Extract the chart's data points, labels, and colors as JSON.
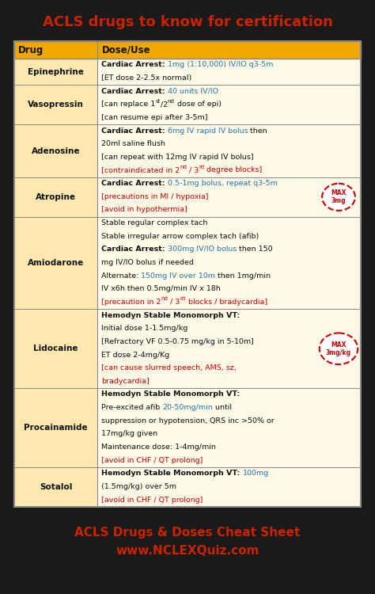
{
  "title": "ACLS drugs to know for certification",
  "footer_line1": "ACLS Drugs & Doses Cheat Sheet",
  "footer_line2": "www.NCLEXQuiz.com",
  "bg_color": "#1a1a1a",
  "title_color": "#cc2200",
  "footer_color": "#cc2200",
  "header_bg": "#f0a800",
  "header_text": "#111111",
  "drug_col_bg": "#fde8b0",
  "dose_col_bg": "#fef9e7",
  "border_color": "#888888",
  "black": "#111111",
  "red": "#cc0000",
  "blue": "#2277aa",
  "rows": [
    {
      "drug": "Epinephrine",
      "lines": [
        [
          {
            "text": "Cardiac Arrest: ",
            "bold": true,
            "color": "black"
          },
          {
            "text": "1mg (1:10,000) IV/IO q3-5m",
            "bold": false,
            "color": "blue"
          }
        ],
        [
          {
            "text": "[ET dose 2-2.5x normal)",
            "bold": false,
            "color": "black"
          }
        ]
      ],
      "max_badge": null
    },
    {
      "drug": "Vasopressin",
      "lines": [
        [
          {
            "text": "Cardiac Arrest: ",
            "bold": true,
            "color": "black"
          },
          {
            "text": "40 units IV/IO",
            "bold": false,
            "color": "blue"
          }
        ],
        [
          {
            "text": "[can replace 1",
            "bold": false,
            "color": "black"
          },
          {
            "text": "st",
            "bold": false,
            "color": "black",
            "super": true
          },
          {
            "text": "/2",
            "bold": false,
            "color": "black"
          },
          {
            "text": "nd",
            "bold": false,
            "color": "black",
            "super": true
          },
          {
            "text": " dose of epi)",
            "bold": false,
            "color": "black"
          }
        ],
        [
          {
            "text": "[can resume epi after 3-5m]",
            "bold": false,
            "color": "black"
          }
        ]
      ],
      "max_badge": null
    },
    {
      "drug": "Adenosine",
      "lines": [
        [
          {
            "text": "Cardiac Arrest: ",
            "bold": true,
            "color": "black"
          },
          {
            "text": "6mg IV rapid IV bolus",
            "bold": false,
            "color": "blue"
          },
          {
            "text": " then",
            "bold": false,
            "color": "black"
          }
        ],
        [
          {
            "text": "20ml saline flush",
            "bold": false,
            "color": "black"
          }
        ],
        [
          {
            "text": "[can repeat with 12mg IV rapid IV bolus]",
            "bold": false,
            "color": "black"
          }
        ],
        [
          {
            "text": "[contraindicated in 2",
            "bold": false,
            "color": "red"
          },
          {
            "text": "nd",
            "bold": false,
            "color": "red",
            "super": true
          },
          {
            "text": " / 3",
            "bold": false,
            "color": "red"
          },
          {
            "text": "rd",
            "bold": false,
            "color": "red",
            "super": true
          },
          {
            "text": " degree blocks]",
            "bold": false,
            "color": "red"
          }
        ]
      ],
      "max_badge": null
    },
    {
      "drug": "Atropine",
      "lines": [
        [
          {
            "text": "Cardiac Arrest: ",
            "bold": true,
            "color": "black"
          },
          {
            "text": "0.5-1mg bolus, repeat q3-5m",
            "bold": false,
            "color": "blue"
          }
        ],
        [
          {
            "text": "[precautions in MI / hypoxia]",
            "bold": false,
            "color": "red"
          }
        ],
        [
          {
            "text": "[avoid in hypothermia]",
            "bold": false,
            "color": "red"
          }
        ]
      ],
      "max_badge": {
        "text": "MAX\n3mg",
        "color": "#cc0000"
      }
    },
    {
      "drug": "Amiodarone",
      "lines": [
        [
          {
            "text": "Stable regular complex tach",
            "bold": false,
            "color": "black"
          }
        ],
        [
          {
            "text": "Stable irregular arrow complex tach (afib)",
            "bold": false,
            "color": "black"
          }
        ],
        [
          {
            "text": "Cardiac Arrest: ",
            "bold": true,
            "color": "black"
          },
          {
            "text": "300mg IV/IO bolus",
            "bold": false,
            "color": "blue"
          },
          {
            "text": " then 150",
            "bold": false,
            "color": "black"
          }
        ],
        [
          {
            "text": "mg IV/IO bolus if needed",
            "bold": false,
            "color": "black"
          }
        ],
        [
          {
            "text": "Alternate: ",
            "bold": false,
            "color": "black"
          },
          {
            "text": "150mg IV over 10m",
            "bold": false,
            "color": "blue"
          },
          {
            "text": " then 1mg/min",
            "bold": false,
            "color": "black"
          }
        ],
        [
          {
            "text": "IV x6h then 0.5mg/min IV x 18h",
            "bold": false,
            "color": "black"
          }
        ],
        [
          {
            "text": "[precaution in 2",
            "bold": false,
            "color": "red"
          },
          {
            "text": "nd",
            "bold": false,
            "color": "red",
            "super": true
          },
          {
            "text": " / 3",
            "bold": false,
            "color": "red"
          },
          {
            "text": "rd",
            "bold": false,
            "color": "red",
            "super": true
          },
          {
            "text": " blocks / bradycardia]",
            "bold": false,
            "color": "red"
          }
        ]
      ],
      "max_badge": null
    },
    {
      "drug": "Lidocaine",
      "lines": [
        [
          {
            "text": "Hemodyn Stable Monomorph VT:",
            "bold": true,
            "color": "black"
          }
        ],
        [
          {
            "text": "Initial dose 1-1.5mg/kg",
            "bold": false,
            "color": "black"
          }
        ],
        [
          {
            "text": "[Refractory VF 0.5-0.75 mg/kg in 5-10m]",
            "bold": false,
            "color": "black"
          }
        ],
        [
          {
            "text": "ET dose 2-4mg/Kg",
            "bold": false,
            "color": "black"
          }
        ],
        [
          {
            "text": "[can cause slurred speech, AMS, sz,",
            "bold": false,
            "color": "red"
          }
        ],
        [
          {
            "text": "bradycardia]",
            "bold": false,
            "color": "red"
          }
        ]
      ],
      "max_badge": {
        "text": "MAX\n3mg/kg",
        "color": "#cc0000"
      }
    },
    {
      "drug": "Procainamide",
      "lines": [
        [
          {
            "text": "Hemodyn Stable Monomorph VT:",
            "bold": true,
            "color": "black"
          }
        ],
        [
          {
            "text": "Pre-excited afib ",
            "bold": false,
            "color": "black"
          },
          {
            "text": "20-50mg/min",
            "bold": false,
            "color": "blue"
          },
          {
            "text": " until",
            "bold": false,
            "color": "black"
          }
        ],
        [
          {
            "text": "suppression or hypotension, QRS inc >50% or",
            "bold": false,
            "color": "black"
          }
        ],
        [
          {
            "text": "17mg/kg given",
            "bold": false,
            "color": "black"
          }
        ],
        [
          {
            "text": "Maintenance dose: 1-4mg/min",
            "bold": false,
            "color": "black"
          }
        ],
        [
          {
            "text": "[avoid in CHF / QT prolong]",
            "bold": false,
            "color": "red"
          }
        ]
      ],
      "max_badge": null
    },
    {
      "drug": "Sotalol",
      "lines": [
        [
          {
            "text": "Hemodyn Stable Monomorph VT: ",
            "bold": true,
            "color": "black"
          },
          {
            "text": "100mg",
            "bold": false,
            "color": "blue"
          }
        ],
        [
          {
            "text": "(1.5mg/kg) over 5m",
            "bold": false,
            "color": "black"
          }
        ],
        [
          {
            "text": "[avoid in CHF / QT prolong]",
            "bold": false,
            "color": "red"
          }
        ]
      ],
      "max_badge": null
    }
  ]
}
